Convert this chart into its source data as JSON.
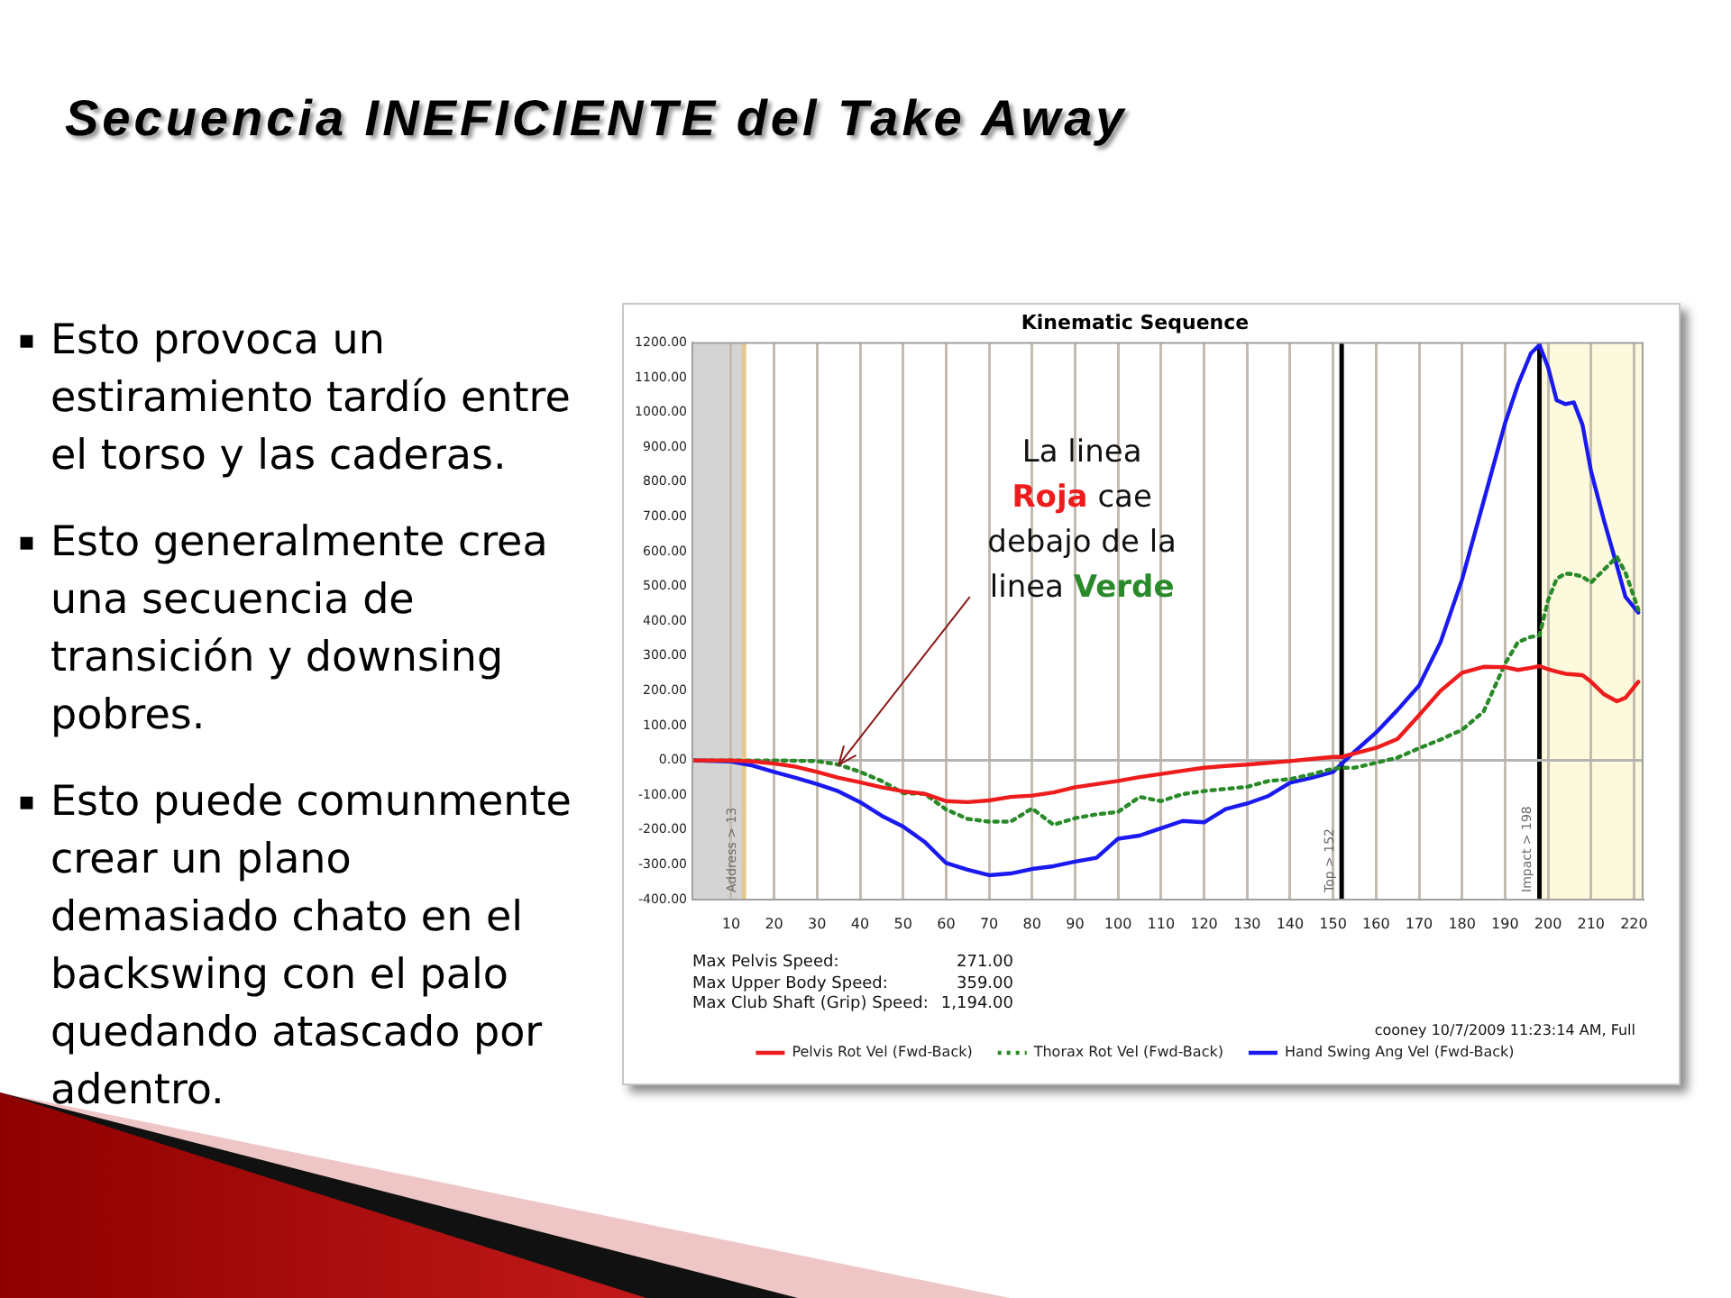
{
  "chart_data": {
    "type": "line",
    "title": "Secuencia INEFICIENTE del Take Away",
    "subtitle": "Kinematic Sequence",
    "x": [
      1,
      10,
      15,
      20,
      25,
      30,
      35,
      40,
      45,
      50,
      55,
      60,
      65,
      70,
      75,
      80,
      85,
      90,
      95,
      100,
      105,
      110,
      115,
      120,
      125,
      130,
      135,
      140,
      145,
      150,
      152,
      155,
      160,
      165,
      170,
      175,
      180,
      185,
      190,
      193,
      196,
      198,
      200,
      202,
      204,
      206,
      208,
      210,
      213,
      216,
      218,
      221
    ],
    "series": [
      {
        "name": "Pelvis Rot Vel (Fwd-Back)",
        "color": "#ee1c1c",
        "values": [
          0,
          0,
          -3,
          -9,
          -18,
          -33,
          -50,
          -63,
          -77,
          -89,
          -96,
          -117,
          -120,
          -115,
          -105,
          -101,
          -92,
          -77,
          -68,
          -59,
          -48,
          -39,
          -30,
          -21,
          -16,
          -12,
          -7,
          -2,
          4,
          10,
          10,
          20,
          36,
          62,
          130,
          200,
          252,
          269,
          268,
          260,
          266,
          271,
          262,
          255,
          249,
          247,
          245,
          226,
          190,
          170,
          180,
          226
        ]
      },
      {
        "name": "Thorax Rot Vel (Fwd-Back)",
        "color": "#2a8a2a",
        "line_style": "dotted",
        "values": [
          0,
          0,
          0,
          0,
          -1,
          -2,
          -12,
          -33,
          -59,
          -94,
          -96,
          -141,
          -168,
          -176,
          -176,
          -138,
          -185,
          -166,
          -155,
          -148,
          -105,
          -117,
          -97,
          -88,
          -82,
          -76,
          -59,
          -54,
          -40,
          -24,
          -21,
          -21,
          -7,
          8,
          35,
          60,
          88,
          140,
          278,
          340,
          355,
          359,
          460,
          522,
          537,
          535,
          528,
          511,
          548,
          585,
          540,
          433
        ]
      },
      {
        "name": "Hand Swing Ang Vel (Fwd-Back)",
        "color": "#1a1af0",
        "values": [
          0,
          -3,
          -15,
          -33,
          -50,
          -68,
          -89,
          -120,
          -159,
          -190,
          -234,
          -295,
          -314,
          -330,
          -325,
          -312,
          -304,
          -291,
          -280,
          -225,
          -216,
          -195,
          -174,
          -178,
          -140,
          -124,
          -102,
          -64,
          -50,
          -33,
          -10,
          25,
          80,
          145,
          215,
          340,
          520,
          744,
          969,
          1080,
          1170,
          1194,
          1130,
          1035,
          1024,
          1029,
          965,
          831,
          690,
          560,
          470,
          425
        ]
      }
    ],
    "xlim": [
      1,
      222
    ],
    "xticks": [
      10,
      20,
      30,
      40,
      50,
      60,
      70,
      80,
      90,
      100,
      110,
      120,
      130,
      140,
      150,
      160,
      170,
      180,
      190,
      200,
      210,
      220
    ],
    "ylim": [
      -400,
      1200
    ],
    "yticks": [
      {
        "value": -400,
        "label": "-400.00"
      },
      {
        "value": -300,
        "label": "-300.00"
      },
      {
        "value": -200,
        "label": "-200.00"
      },
      {
        "value": -100,
        "label": "-100.00"
      },
      {
        "value": 0,
        "label": "0.00"
      },
      {
        "value": 100,
        "label": "100.00"
      },
      {
        "value": 200,
        "label": "200.00"
      },
      {
        "value": 300,
        "label": "300.00"
      },
      {
        "value": 400,
        "label": "400.00"
      },
      {
        "value": 500,
        "label": "500.00"
      },
      {
        "value": 600,
        "label": "600.00"
      },
      {
        "value": 700,
        "label": "700.00"
      },
      {
        "value": 800,
        "label": "800.00"
      },
      {
        "value": 900,
        "label": "900.00"
      },
      {
        "value": 1000,
        "label": "1000.00"
      },
      {
        "value": 1100,
        "label": "1100.00"
      },
      {
        "value": 1200,
        "label": "1200.00"
      }
    ],
    "grid": "x",
    "legend": "bottom",
    "bands": [
      {
        "axis": "x",
        "from": 1,
        "to": 13,
        "color": "#d4d4d4"
      },
      {
        "axis": "x",
        "from": 198,
        "to": 222,
        "color": "#fcf9dc"
      }
    ],
    "ref_lines": [
      {
        "axis": "x",
        "value": 13,
        "label": "Address > 13",
        "color": "#e6c88e"
      },
      {
        "axis": "x",
        "value": 152,
        "label": "Top > 152",
        "color": "#000000"
      },
      {
        "axis": "x",
        "value": 198,
        "label": "Impact > 198",
        "color": "#000000"
      },
      {
        "axis": "y",
        "value": 0,
        "color": "#b4b4b4"
      }
    ],
    "annotations": [
      "▪ Esto provoca un estiramiento tardío entre el torso y las caderas.",
      "▪ Esto generalmente crea una secuencia de transición y downsing pobres.",
      "▪ Esto puede comunmente crear un plano demasiado chato en el backswing con el palo quedando atascado por adentro.",
      "La linea Roja cae debajo de la linea Verde",
      "Max Pelvis Speed: 271.00",
      "Max Upper Body Speed: 359.00",
      "Max Club Shaft (Grip) Speed: 1,194.00",
      "cooney 10/7/2009 11:23:14 AM, Full"
    ]
  }
}
